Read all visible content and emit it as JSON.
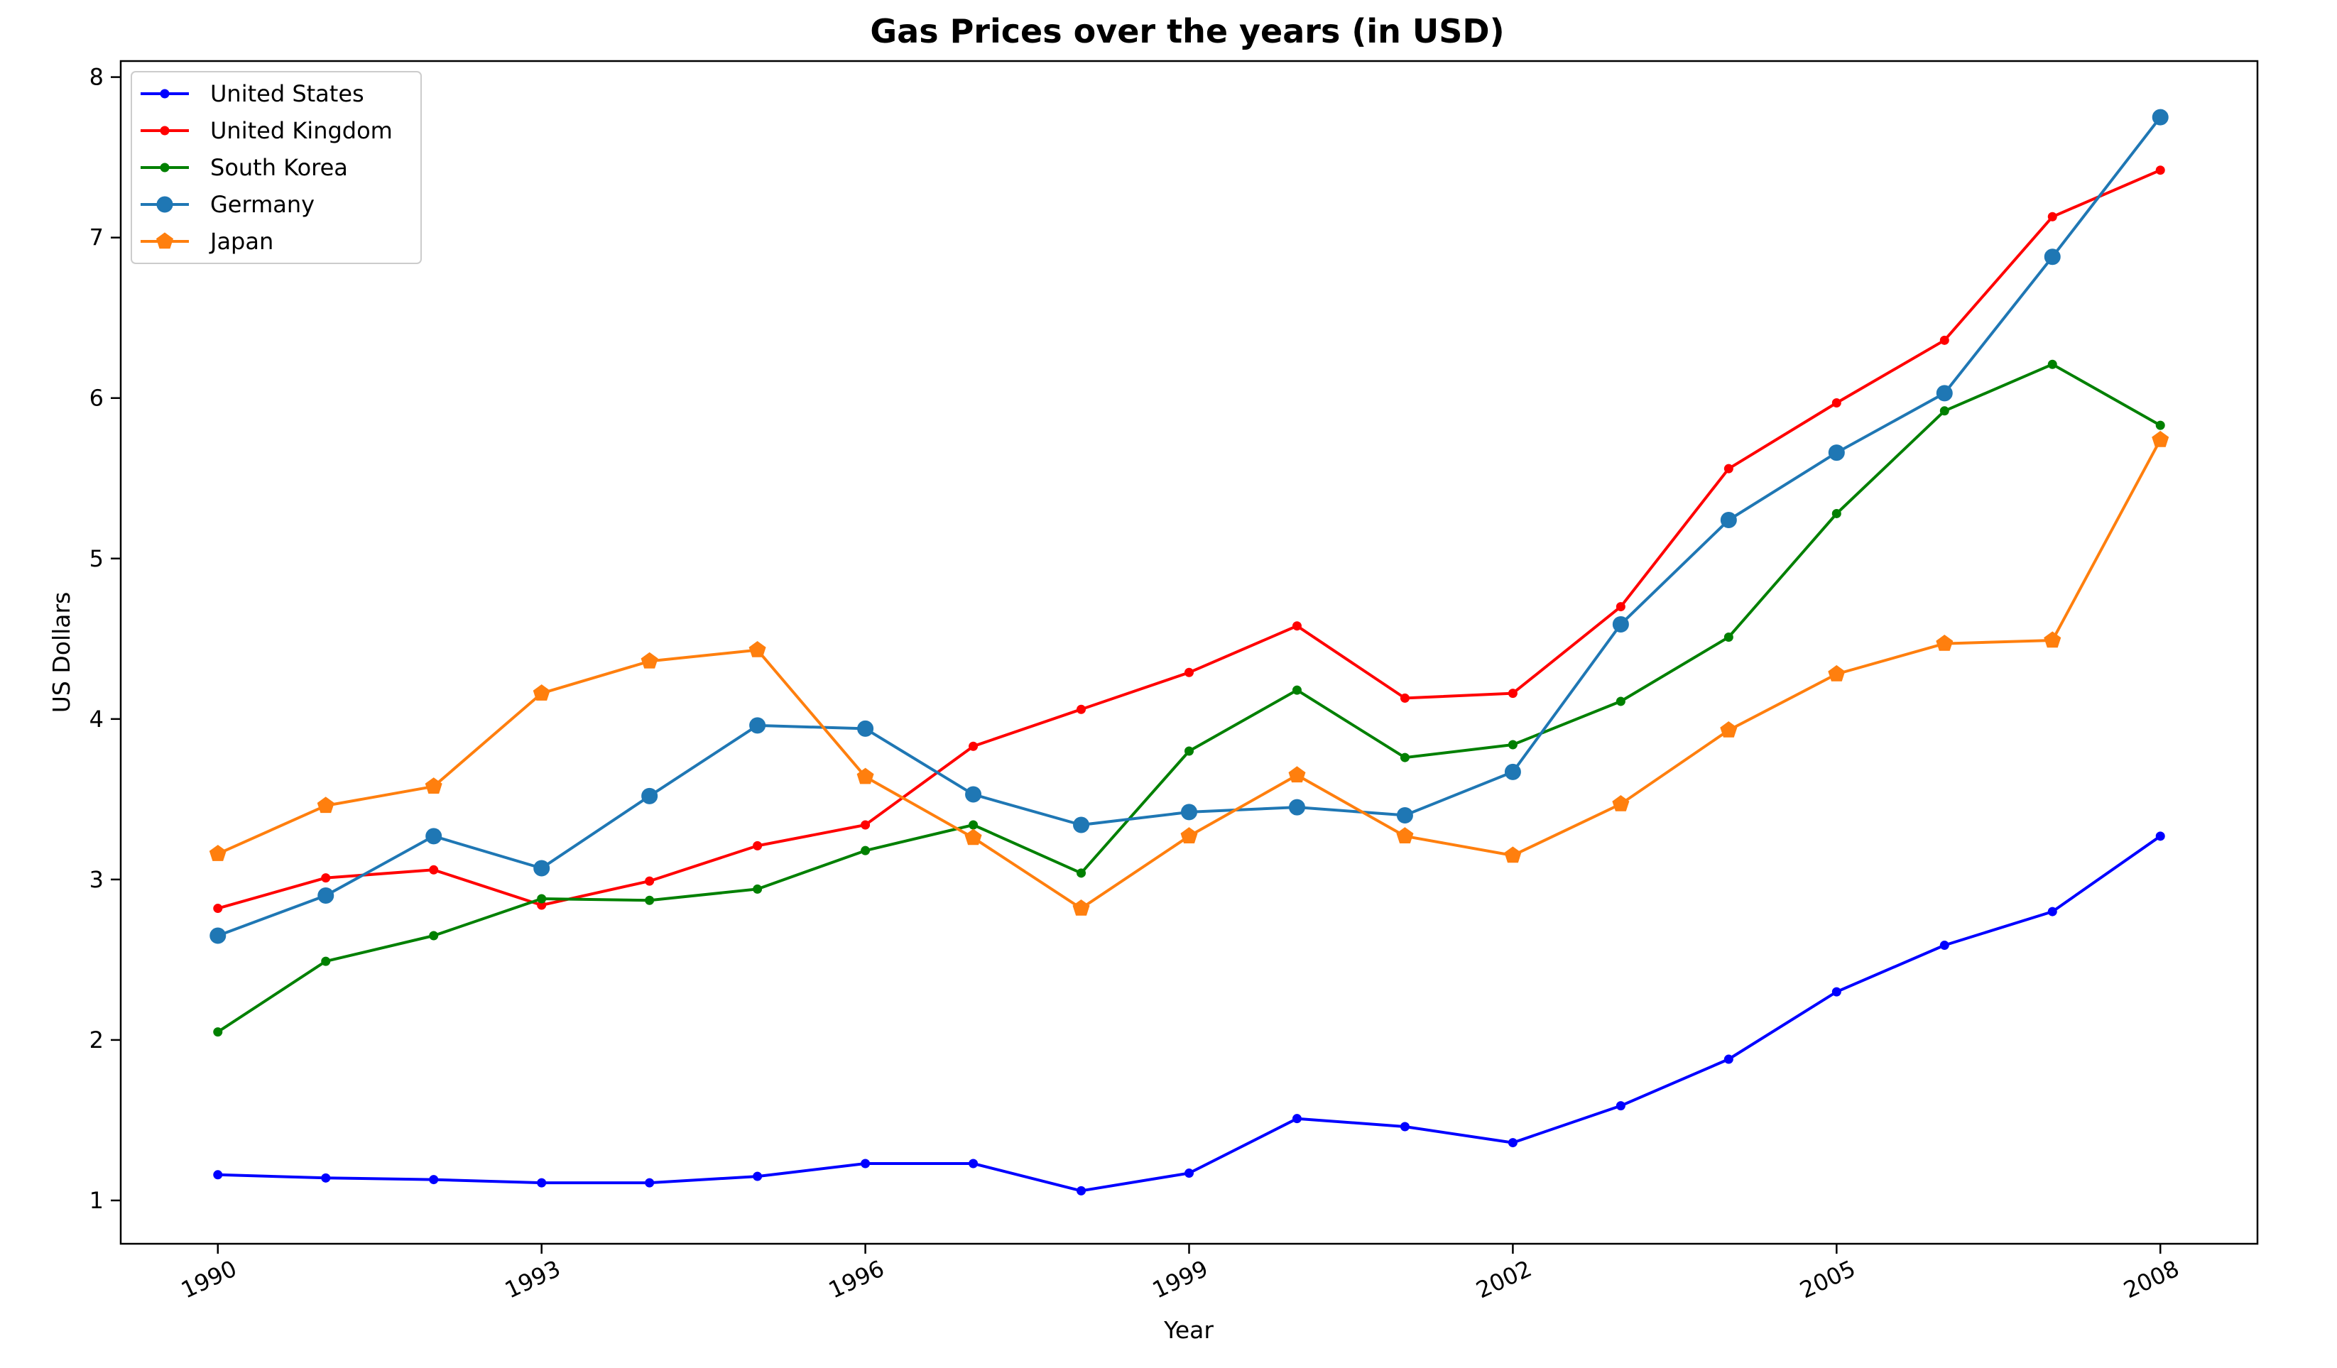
{
  "chart_data": {
    "type": "line",
    "title": "Gas Prices over the years (in USD)",
    "xlabel": "Year",
    "ylabel": "US Dollars",
    "x": [
      1990,
      1991,
      1992,
      1993,
      1994,
      1995,
      1996,
      1997,
      1998,
      1999,
      2000,
      2001,
      2002,
      2003,
      2004,
      2005,
      2006,
      2007,
      2008
    ],
    "xlim": [
      1989.1,
      2008.9
    ],
    "ylim": [
      0.73,
      8.1
    ],
    "xticks": [
      1990,
      1993,
      1996,
      1999,
      2002,
      2005,
      2008
    ],
    "yticks": [
      1,
      2,
      3,
      4,
      5,
      6,
      7,
      8
    ],
    "grid": false,
    "legend_position": "top-left",
    "series": [
      {
        "name": "United States",
        "color": "#0000ff",
        "marker": "small-dot",
        "values": [
          1.16,
          1.14,
          1.13,
          1.11,
          1.11,
          1.15,
          1.23,
          1.23,
          1.06,
          1.17,
          1.51,
          1.46,
          1.36,
          1.59,
          1.88,
          2.3,
          2.59,
          2.8,
          3.27
        ]
      },
      {
        "name": "United Kingdom",
        "color": "#ff0000",
        "marker": "small-dot",
        "values": [
          2.82,
          3.01,
          3.06,
          2.84,
          2.99,
          3.21,
          3.34,
          3.83,
          4.06,
          4.29,
          4.58,
          4.13,
          4.16,
          4.7,
          5.56,
          5.97,
          6.36,
          7.13,
          7.42
        ]
      },
      {
        "name": "South Korea",
        "color": "#008000",
        "marker": "small-dot",
        "values": [
          2.05,
          2.49,
          2.65,
          2.88,
          2.87,
          2.94,
          3.18,
          3.34,
          3.04,
          3.8,
          4.18,
          3.76,
          3.84,
          4.11,
          4.51,
          5.28,
          5.92,
          6.21,
          5.83
        ]
      },
      {
        "name": "Germany",
        "color": "#1f77b4",
        "marker": "big-dot",
        "values": [
          2.65,
          2.9,
          3.27,
          3.07,
          3.52,
          3.96,
          3.94,
          3.53,
          3.34,
          3.42,
          3.45,
          3.4,
          3.67,
          4.59,
          5.24,
          5.66,
          6.03,
          6.88,
          7.75
        ]
      },
      {
        "name": "Japan",
        "color": "#ff7f0e",
        "marker": "pentagon",
        "values": [
          3.16,
          3.46,
          3.58,
          4.16,
          4.36,
          4.43,
          3.64,
          3.26,
          2.82,
          3.27,
          3.65,
          3.27,
          3.15,
          3.47,
          3.93,
          4.28,
          4.47,
          4.49,
          5.74
        ]
      }
    ]
  }
}
